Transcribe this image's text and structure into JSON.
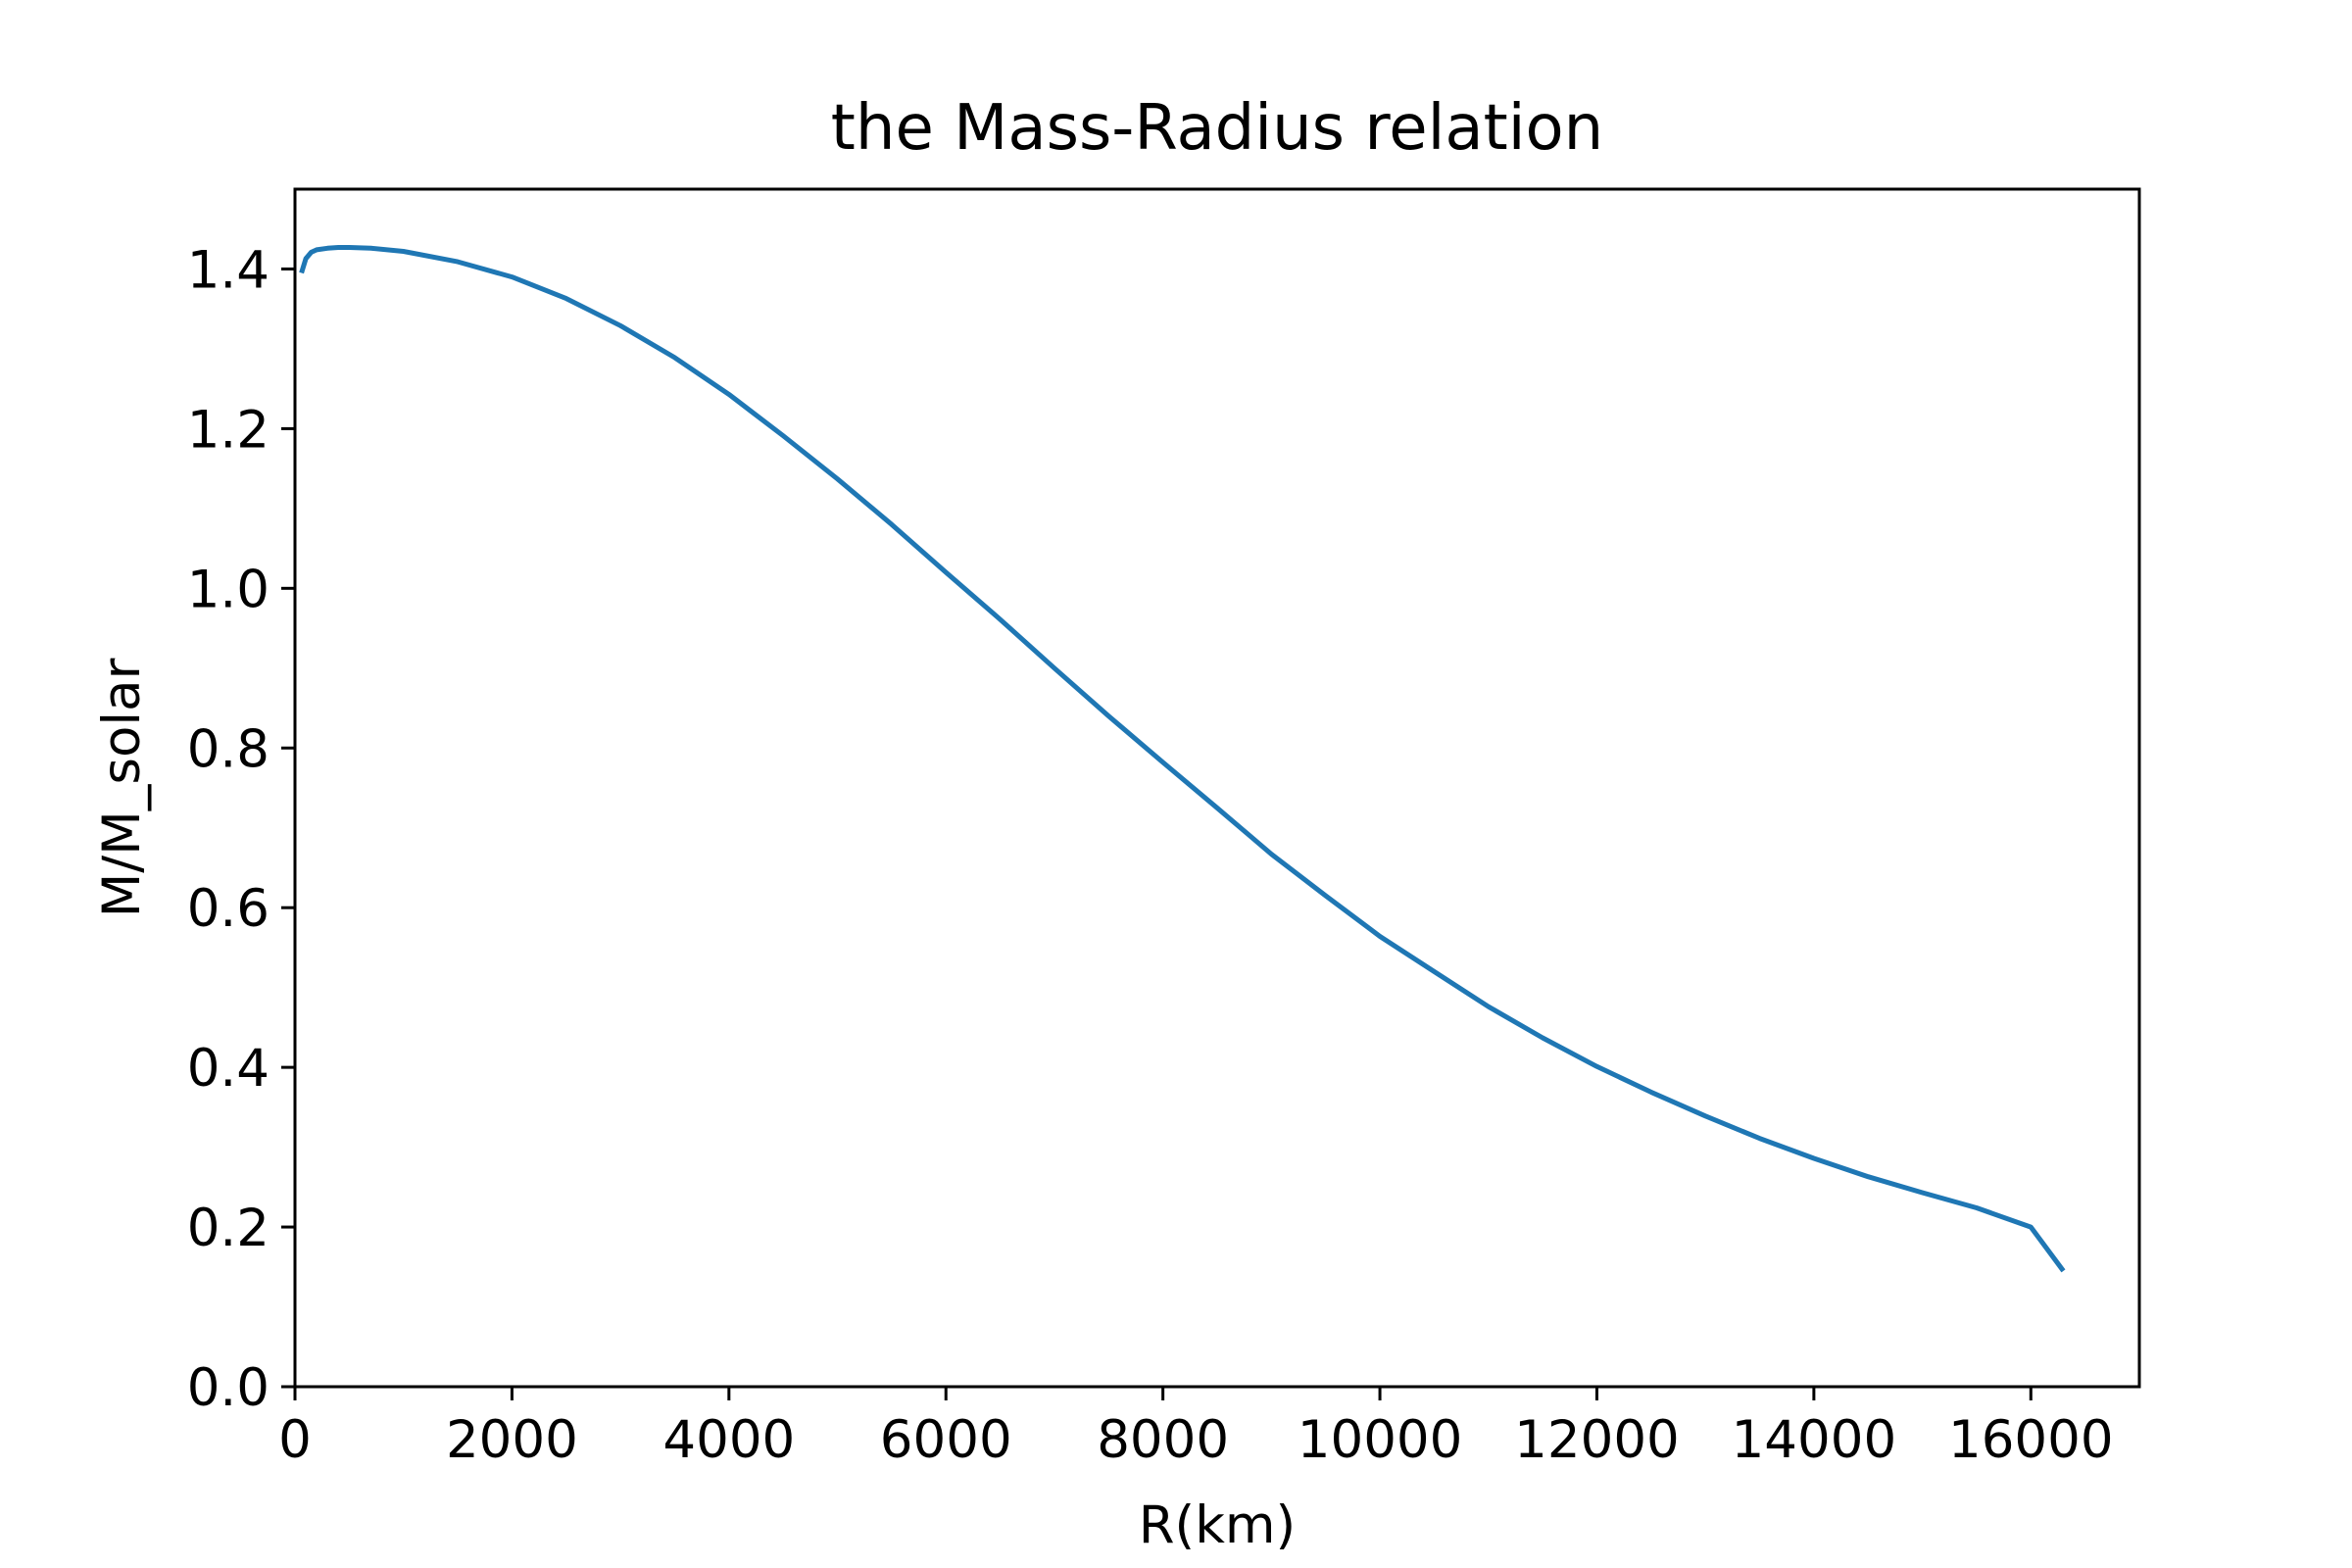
{
  "chart_data": {
    "type": "line",
    "title": "the Mass-Radius relation",
    "xlabel": "R(km)",
    "ylabel": "M/M_solar",
    "xlim": [
      0,
      17000
    ],
    "ylim": [
      0,
      1.5
    ],
    "grid": false,
    "legend": "none",
    "x_ticks": [
      0,
      2000,
      4000,
      6000,
      8000,
      10000,
      12000,
      14000,
      16000
    ],
    "x_tick_labels": [
      "0",
      "2000",
      "4000",
      "6000",
      "8000",
      "10000",
      "12000",
      "14000",
      "16000"
    ],
    "y_ticks": [
      0.0,
      0.2,
      0.4,
      0.6,
      0.8,
      1.0,
      1.2,
      1.4
    ],
    "y_tick_labels": [
      "0.0",
      "0.2",
      "0.4",
      "0.6",
      "0.8",
      "1.0",
      "1.2",
      "1.4"
    ],
    "series": [
      {
        "color": "#1f77b4",
        "x": [
          60,
          100,
          150,
          200,
          300,
          400,
          500,
          700,
          1000,
          1500,
          2000,
          2500,
          3000,
          3500,
          4000,
          4500,
          5000,
          5500,
          6000,
          6500,
          7000,
          7500,
          8000,
          8500,
          9000,
          9500,
          10000,
          10500,
          11000,
          11500,
          12000,
          12500,
          13000,
          13500,
          14000,
          14500,
          15000,
          15500,
          16000,
          16300
        ],
        "y": [
          1.395,
          1.413,
          1.421,
          1.424,
          1.426,
          1.427,
          1.427,
          1.426,
          1.422,
          1.409,
          1.39,
          1.363,
          1.329,
          1.289,
          1.243,
          1.191,
          1.137,
          1.08,
          1.02,
          0.961,
          0.9,
          0.84,
          0.782,
          0.725,
          0.667,
          0.615,
          0.564,
          0.52,
          0.476,
          0.437,
          0.401,
          0.369,
          0.339,
          0.311,
          0.286,
          0.263,
          0.243,
          0.224,
          0.2,
          0.145
        ]
      }
    ]
  }
}
